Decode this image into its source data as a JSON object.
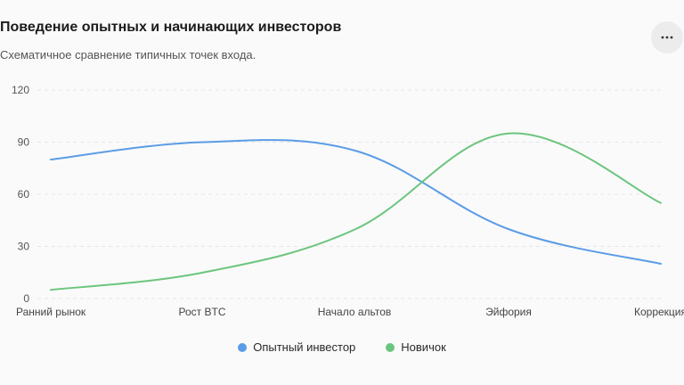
{
  "header": {
    "title": "Поведение опытных и начинающих инвесторов",
    "subtitle": "Схематичное сравнение типичных точек входа.",
    "more_icon": "more-horizontal-icon",
    "more_label": "···"
  },
  "chart_data": {
    "type": "line",
    "categories": [
      "Ранний рынок",
      "Рост BTC",
      "Начало альтов",
      "Эйфория",
      "Коррекция"
    ],
    "series": [
      {
        "name": "Опытный инвестор",
        "color": "#5b9ce6",
        "values": [
          80,
          90,
          85,
          40,
          20
        ]
      },
      {
        "name": "Новичок",
        "color": "#6cc57e",
        "values": [
          5,
          15,
          40,
          95,
          55
        ]
      }
    ],
    "ylim": [
      0,
      120
    ],
    "yticks": [
      0,
      30,
      60,
      90,
      120
    ],
    "grid": true,
    "legend": "bottom-center",
    "title": "Поведение опытных и начинающих инвесторов",
    "subtitle": "Схематичное сравнение типичных точек входа."
  }
}
